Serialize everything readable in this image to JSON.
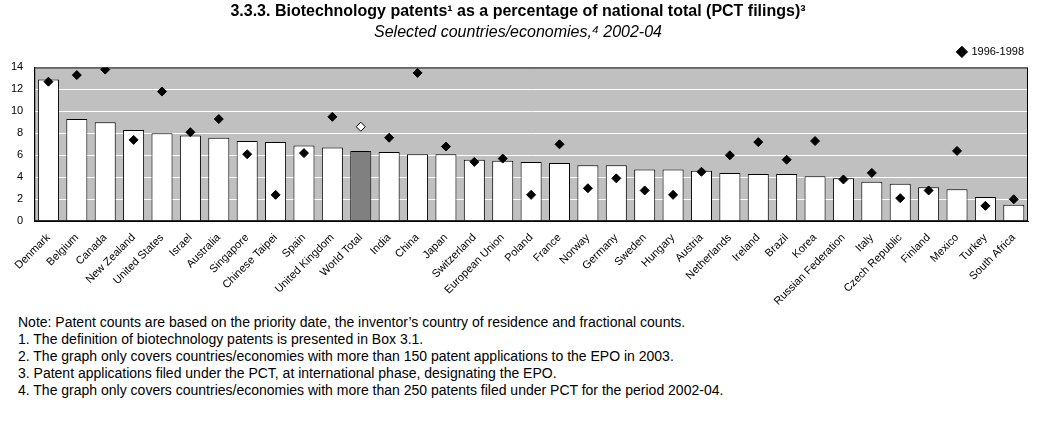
{
  "chart_data": {
    "type": "bar",
    "title": "3.3.3. Biotechnology patents¹ as a percentage of national total (PCT filings)³",
    "subtitle": "Selected countries/economies,⁴ 2002-04",
    "categories": [
      "Denmark",
      "Belgium",
      "Canada",
      "New Zealand",
      "United States",
      "Israel",
      "Australia",
      "Singapore",
      "Chinese Taipei",
      "Spain",
      "United Kingdom",
      "World Total",
      "India",
      "China",
      "Japan",
      "Switzerland",
      "European Union",
      "Poland",
      "France",
      "Norway",
      "Germany",
      "Sweden",
      "Hungary",
      "Austria",
      "Netherlands",
      "Ireland",
      "Brazil",
      "Korea",
      "Russian Federation",
      "Italy",
      "Czech Republic",
      "Finland",
      "Mexico",
      "Turkey",
      "South Africa"
    ],
    "series": [
      {
        "type": "bar",
        "colors": [
          "#ffffff",
          "#ffffff",
          "#ffffff",
          "#ffffff",
          "#ffffff",
          "#ffffff",
          "#ffffff",
          "#ffffff",
          "#ffffff",
          "#ffffff",
          "#ffffff",
          "#808080",
          "#ffffff",
          "#ffffff",
          "#ffffff",
          "#ffffff",
          "#ffffff",
          "#ffffff",
          "#ffffff",
          "#ffffff",
          "#ffffff",
          "#ffffff",
          "#ffffff",
          "#ffffff",
          "#ffffff",
          "#ffffff",
          "#ffffff",
          "#ffffff",
          "#ffffff",
          "#ffffff",
          "#ffffff",
          "#ffffff",
          "#ffffff",
          "#ffffff",
          "#ffffff"
        ],
        "values": [
          12.9,
          9.3,
          9.0,
          8.3,
          8.0,
          7.8,
          7.6,
          7.3,
          7.2,
          6.9,
          6.7,
          6.4,
          6.3,
          6.1,
          6.1,
          5.6,
          5.5,
          5.4,
          5.3,
          5.1,
          5.1,
          4.7,
          4.7,
          4.6,
          4.4,
          4.3,
          4.3,
          4.1,
          3.9,
          3.6,
          3.4,
          3.1,
          2.9,
          2.2,
          1.5
        ]
      },
      {
        "name": "1996-1998",
        "type": "scatter",
        "marker": "diamond",
        "colors": [
          "#000000",
          "#000000",
          "#000000",
          "#000000",
          "#000000",
          "#000000",
          "#000000",
          "#000000",
          "#000000",
          "#000000",
          "#000000",
          "#ffffff",
          "#000000",
          "#000000",
          "#000000",
          "#000000",
          "#000000",
          "#000000",
          "#000000",
          "#000000",
          "#000000",
          "#000000",
          "#000000",
          "#000000",
          "#000000",
          "#000000",
          "#000000",
          "#000000",
          "#000000",
          "#000000",
          "#000000",
          "#000000",
          "#000000",
          "#000000",
          "#000000"
        ],
        "values": [
          12.7,
          13.3,
          13.8,
          7.4,
          11.8,
          8.1,
          9.3,
          6.1,
          2.4,
          6.2,
          9.5,
          8.6,
          7.6,
          13.5,
          6.8,
          5.4,
          5.7,
          2.4,
          7.0,
          3.0,
          3.9,
          2.8,
          2.4,
          4.5,
          6.0,
          7.2,
          5.6,
          7.3,
          3.8,
          4.4,
          2.1,
          2.8,
          6.4,
          1.4,
          2.0
        ]
      }
    ],
    "ylim": [
      0,
      14
    ],
    "yticks": [
      0,
      2,
      4,
      6,
      8,
      10,
      12,
      14
    ],
    "grid": true,
    "legend": "top-right",
    "notes": [
      "Note: Patent counts are based on the priority date, the inventor’s country of residence and fractional counts.",
      "1. The definition of biotechnology patents is presented in Box 3.1.",
      "2. The graph only covers countries/economies with more than 150 patent applications to the EPO in 2003.",
      "3. Patent applications filed under the PCT, at international phase, designating the EPO.",
      "4. The graph only covers countries/economies with more than 250 patents filed under PCT for the period 2002-04."
    ]
  }
}
